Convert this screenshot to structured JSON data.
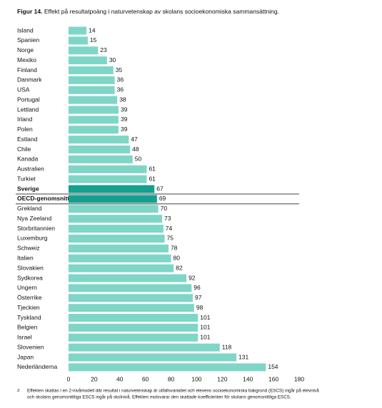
{
  "chart_data": {
    "type": "bar",
    "orientation": "horizontal",
    "figure_label": "Figur 14.",
    "title": "Effekt på resultatpoäng i naturvetenskap av skolans socioekonomiska sammansättning.",
    "categories": [
      "Island",
      "Spanien",
      "Norge",
      "Mexiko",
      "Finland",
      "Danmark",
      "USA",
      "Portugal",
      "Lettland",
      "Irland",
      "Polen",
      "Estland",
      "Chile",
      "Kanada",
      "Australien",
      "Turkiet",
      "Sverige",
      "OECD-genomsnitt",
      "Grekland",
      "Nya Zeeland",
      "Storbritannien",
      "Luxemburg",
      "Schweiz",
      "Italien",
      "Slovakien",
      "Sydkorea",
      "Ungern",
      "Österrike",
      "Tjeckien",
      "Tyskland",
      "Belgien",
      "Israel",
      "Slovenien",
      "Japan",
      "Nederländerna"
    ],
    "values": [
      14,
      15,
      23,
      30,
      35,
      36,
      36,
      38,
      39,
      39,
      39,
      47,
      48,
      50,
      61,
      61,
      67,
      69,
      70,
      73,
      74,
      75,
      78,
      80,
      82,
      92,
      96,
      97,
      98,
      101,
      101,
      101,
      118,
      131,
      154
    ],
    "color": "#7fd6c6",
    "colors": [
      "#7fd6c6",
      "#7fd6c6",
      "#7fd6c6",
      "#7fd6c6",
      "#7fd6c6",
      "#7fd6c6",
      "#7fd6c6",
      "#7fd6c6",
      "#7fd6c6",
      "#7fd6c6",
      "#7fd6c6",
      "#7fd6c6",
      "#7fd6c6",
      "#7fd6c6",
      "#7fd6c6",
      "#7fd6c6",
      "#14a08e",
      "#14a08e",
      "#7fd6c6",
      "#7fd6c6",
      "#7fd6c6",
      "#7fd6c6",
      "#7fd6c6",
      "#7fd6c6",
      "#7fd6c6",
      "#7fd6c6",
      "#7fd6c6",
      "#7fd6c6",
      "#7fd6c6",
      "#7fd6c6",
      "#7fd6c6",
      "#7fd6c6",
      "#7fd6c6",
      "#7fd6c6",
      "#7fd6c6"
    ],
    "xlim": [
      0,
      180
    ],
    "xticks": [
      0,
      20,
      40,
      60,
      80,
      100,
      120,
      140,
      160,
      180
    ],
    "grid": false,
    "footnote_symbol": "#",
    "footnote": [
      "Effekten skattas i en 2-nivåmodell där resultat i naturvetenskap är utfallsvariabel och elevens socioekonomiska bakgrund (ESCS) ingår på elevnivå",
      "och skolans genomsnittliga ESCS ingår på skolnivå. Effekten motsvarar den skattade koefficienten för skolans genomsnittliga ESCS."
    ]
  }
}
